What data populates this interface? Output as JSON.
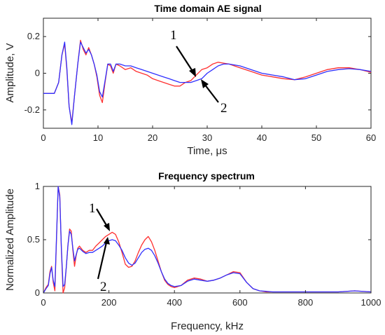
{
  "chart_data": [
    {
      "type": "line",
      "title": "Time domain AE signal",
      "xlabel": "Time, μs",
      "ylabel": "Amplitude, V",
      "xlim": [
        0,
        60
      ],
      "ylim": [
        -0.3,
        0.3
      ],
      "xticks": [
        "0",
        "10",
        "20",
        "30",
        "40",
        "50",
        "60"
      ],
      "yticks": [
        "-0.2",
        "0",
        "0.2"
      ],
      "ytick_values": [
        -0.2,
        0,
        0.2
      ],
      "xtick_values": [
        0,
        10,
        20,
        30,
        40,
        50,
        60
      ],
      "grid": false,
      "series": [
        {
          "color": "#ff3030",
          "x": [
            0,
            2,
            2.8,
            3.4,
            3.9,
            4.3,
            4.7,
            5.2,
            5.7,
            6.3,
            6.8,
            7.3,
            7.8,
            8.3,
            8.8,
            9.3,
            9.8,
            10.3,
            10.8,
            11.3,
            11.8,
            12.3,
            12.8,
            13.3,
            14,
            15,
            16,
            17,
            18,
            19,
            20,
            21,
            22,
            23,
            24,
            25,
            26,
            27,
            28,
            29,
            30,
            31,
            32,
            33,
            34,
            36,
            38,
            40,
            42,
            44,
            46,
            48,
            50,
            52,
            54,
            56,
            58,
            60
          ],
          "y": [
            -0.11,
            -0.11,
            -0.05,
            0.1,
            0.16,
            0.02,
            -0.18,
            -0.27,
            -0.12,
            0.05,
            0.18,
            0.13,
            0.1,
            0.14,
            0.1,
            0.05,
            -0.02,
            -0.12,
            -0.16,
            -0.05,
            0.05,
            0.04,
            0.0,
            0.05,
            0.04,
            0.02,
            0.03,
            0.01,
            0.0,
            -0.01,
            -0.03,
            -0.04,
            -0.05,
            -0.06,
            -0.07,
            -0.07,
            -0.05,
            -0.04,
            -0.01,
            0.02,
            0.03,
            0.05,
            0.06,
            0.055,
            0.05,
            0.03,
            0.01,
            -0.01,
            -0.02,
            -0.03,
            -0.035,
            -0.02,
            0.0,
            0.02,
            0.03,
            0.03,
            0.02,
            0.005
          ]
        },
        {
          "color": "#3030ff",
          "x": [
            0,
            2,
            2.8,
            3.4,
            3.9,
            4.3,
            4.7,
            5.2,
            5.7,
            6.3,
            6.8,
            7.3,
            7.8,
            8.3,
            8.8,
            9.3,
            9.8,
            10.3,
            10.8,
            11.3,
            11.8,
            12.3,
            12.8,
            13.3,
            14,
            15,
            16,
            17,
            18,
            19,
            20,
            21,
            22,
            23,
            24,
            25,
            26,
            27,
            28,
            29,
            30,
            31,
            32,
            33,
            34,
            36,
            38,
            40,
            42,
            44,
            46,
            48,
            50,
            52,
            54,
            56,
            58,
            60
          ],
          "y": [
            -0.11,
            -0.11,
            -0.05,
            0.1,
            0.17,
            0.03,
            -0.18,
            -0.28,
            -0.12,
            0.05,
            0.17,
            0.14,
            0.11,
            0.13,
            0.1,
            0.05,
            -0.01,
            -0.1,
            -0.13,
            -0.04,
            0.05,
            0.05,
            0.01,
            0.05,
            0.05,
            0.04,
            0.04,
            0.03,
            0.02,
            0.01,
            0.0,
            -0.01,
            -0.02,
            -0.03,
            -0.04,
            -0.05,
            -0.05,
            -0.05,
            -0.04,
            -0.03,
            0.0,
            0.02,
            0.04,
            0.05,
            0.05,
            0.04,
            0.02,
            0.0,
            -0.01,
            -0.02,
            -0.035,
            -0.03,
            -0.01,
            0.01,
            0.02,
            0.025,
            0.02,
            0.01
          ]
        }
      ],
      "annotations": [
        {
          "text": "1",
          "points_to": [
            27,
            -0.02
          ]
        },
        {
          "text": "2",
          "points_to": [
            28.5,
            -0.04
          ]
        }
      ]
    },
    {
      "type": "line",
      "title": "Frequency spectrum",
      "xlabel": "Frequency, kHz",
      "ylabel": "Normalized Amplitude",
      "xlim": [
        0,
        1000
      ],
      "ylim": [
        0,
        1
      ],
      "xticks": [
        "0",
        "200",
        "400",
        "600",
        "800",
        "1000"
      ],
      "yticks": [
        "0",
        "0.5",
        "1"
      ],
      "ytick_values": [
        0,
        0.5,
        1
      ],
      "xtick_values": [
        0,
        200,
        400,
        600,
        800,
        1000
      ],
      "grid": false,
      "series": [
        {
          "color": "#ff3030",
          "x": [
            0,
            8,
            15,
            20,
            25,
            30,
            35,
            40,
            45,
            50,
            55,
            60,
            65,
            70,
            75,
            80,
            85,
            90,
            95,
            100,
            105,
            110,
            120,
            130,
            140,
            150,
            160,
            170,
            180,
            190,
            200,
            210,
            220,
            230,
            240,
            250,
            260,
            270,
            280,
            290,
            300,
            310,
            320,
            330,
            340,
            350,
            360,
            370,
            380,
            390,
            400,
            420,
            440,
            460,
            480,
            500,
            520,
            540,
            560,
            580,
            600,
            620,
            640,
            660,
            680,
            700,
            750,
            800,
            850,
            900,
            950,
            1000
          ],
          "y": [
            0.0,
            0.05,
            0.08,
            0.2,
            0.25,
            0.1,
            0.02,
            0.5,
            1.0,
            0.92,
            0.4,
            0.0,
            0.05,
            0.25,
            0.45,
            0.6,
            0.58,
            0.4,
            0.25,
            0.35,
            0.42,
            0.44,
            0.4,
            0.38,
            0.4,
            0.4,
            0.44,
            0.47,
            0.5,
            0.53,
            0.55,
            0.57,
            0.55,
            0.48,
            0.38,
            0.27,
            0.24,
            0.25,
            0.3,
            0.38,
            0.45,
            0.5,
            0.53,
            0.48,
            0.4,
            0.3,
            0.2,
            0.12,
            0.08,
            0.06,
            0.05,
            0.07,
            0.12,
            0.14,
            0.13,
            0.11,
            0.12,
            0.14,
            0.17,
            0.2,
            0.19,
            0.1,
            0.04,
            0.02,
            0.01,
            0.01,
            0.01,
            0.01,
            0.01,
            0.01,
            0.02,
            0.01
          ]
        },
        {
          "color": "#3030ff",
          "x": [
            0,
            8,
            15,
            20,
            25,
            30,
            35,
            40,
            45,
            50,
            55,
            60,
            65,
            70,
            75,
            80,
            85,
            90,
            95,
            100,
            105,
            110,
            120,
            130,
            140,
            150,
            160,
            170,
            180,
            190,
            200,
            210,
            220,
            230,
            240,
            250,
            260,
            270,
            280,
            290,
            300,
            310,
            320,
            330,
            340,
            350,
            360,
            370,
            380,
            390,
            400,
            420,
            440,
            460,
            480,
            500,
            520,
            540,
            560,
            580,
            600,
            620,
            640,
            660,
            680,
            700,
            750,
            800,
            850,
            900,
            950,
            1000
          ],
          "y": [
            0.0,
            0.04,
            0.07,
            0.18,
            0.24,
            0.12,
            0.06,
            0.52,
            1.0,
            0.9,
            0.42,
            0.06,
            0.08,
            0.25,
            0.45,
            0.58,
            0.55,
            0.42,
            0.3,
            0.36,
            0.41,
            0.42,
            0.39,
            0.37,
            0.38,
            0.38,
            0.4,
            0.42,
            0.44,
            0.47,
            0.49,
            0.5,
            0.49,
            0.45,
            0.4,
            0.33,
            0.28,
            0.26,
            0.28,
            0.33,
            0.38,
            0.41,
            0.42,
            0.4,
            0.35,
            0.28,
            0.2,
            0.13,
            0.09,
            0.07,
            0.06,
            0.07,
            0.11,
            0.13,
            0.12,
            0.11,
            0.12,
            0.14,
            0.17,
            0.19,
            0.18,
            0.1,
            0.04,
            0.02,
            0.015,
            0.01,
            0.01,
            0.01,
            0.01,
            0.01,
            0.02,
            0.01
          ]
        }
      ],
      "annotations": [
        {
          "text": "1",
          "points_to": [
            205,
            0.57
          ]
        },
        {
          "text": "2",
          "points_to": [
            200,
            0.49
          ]
        }
      ]
    }
  ]
}
